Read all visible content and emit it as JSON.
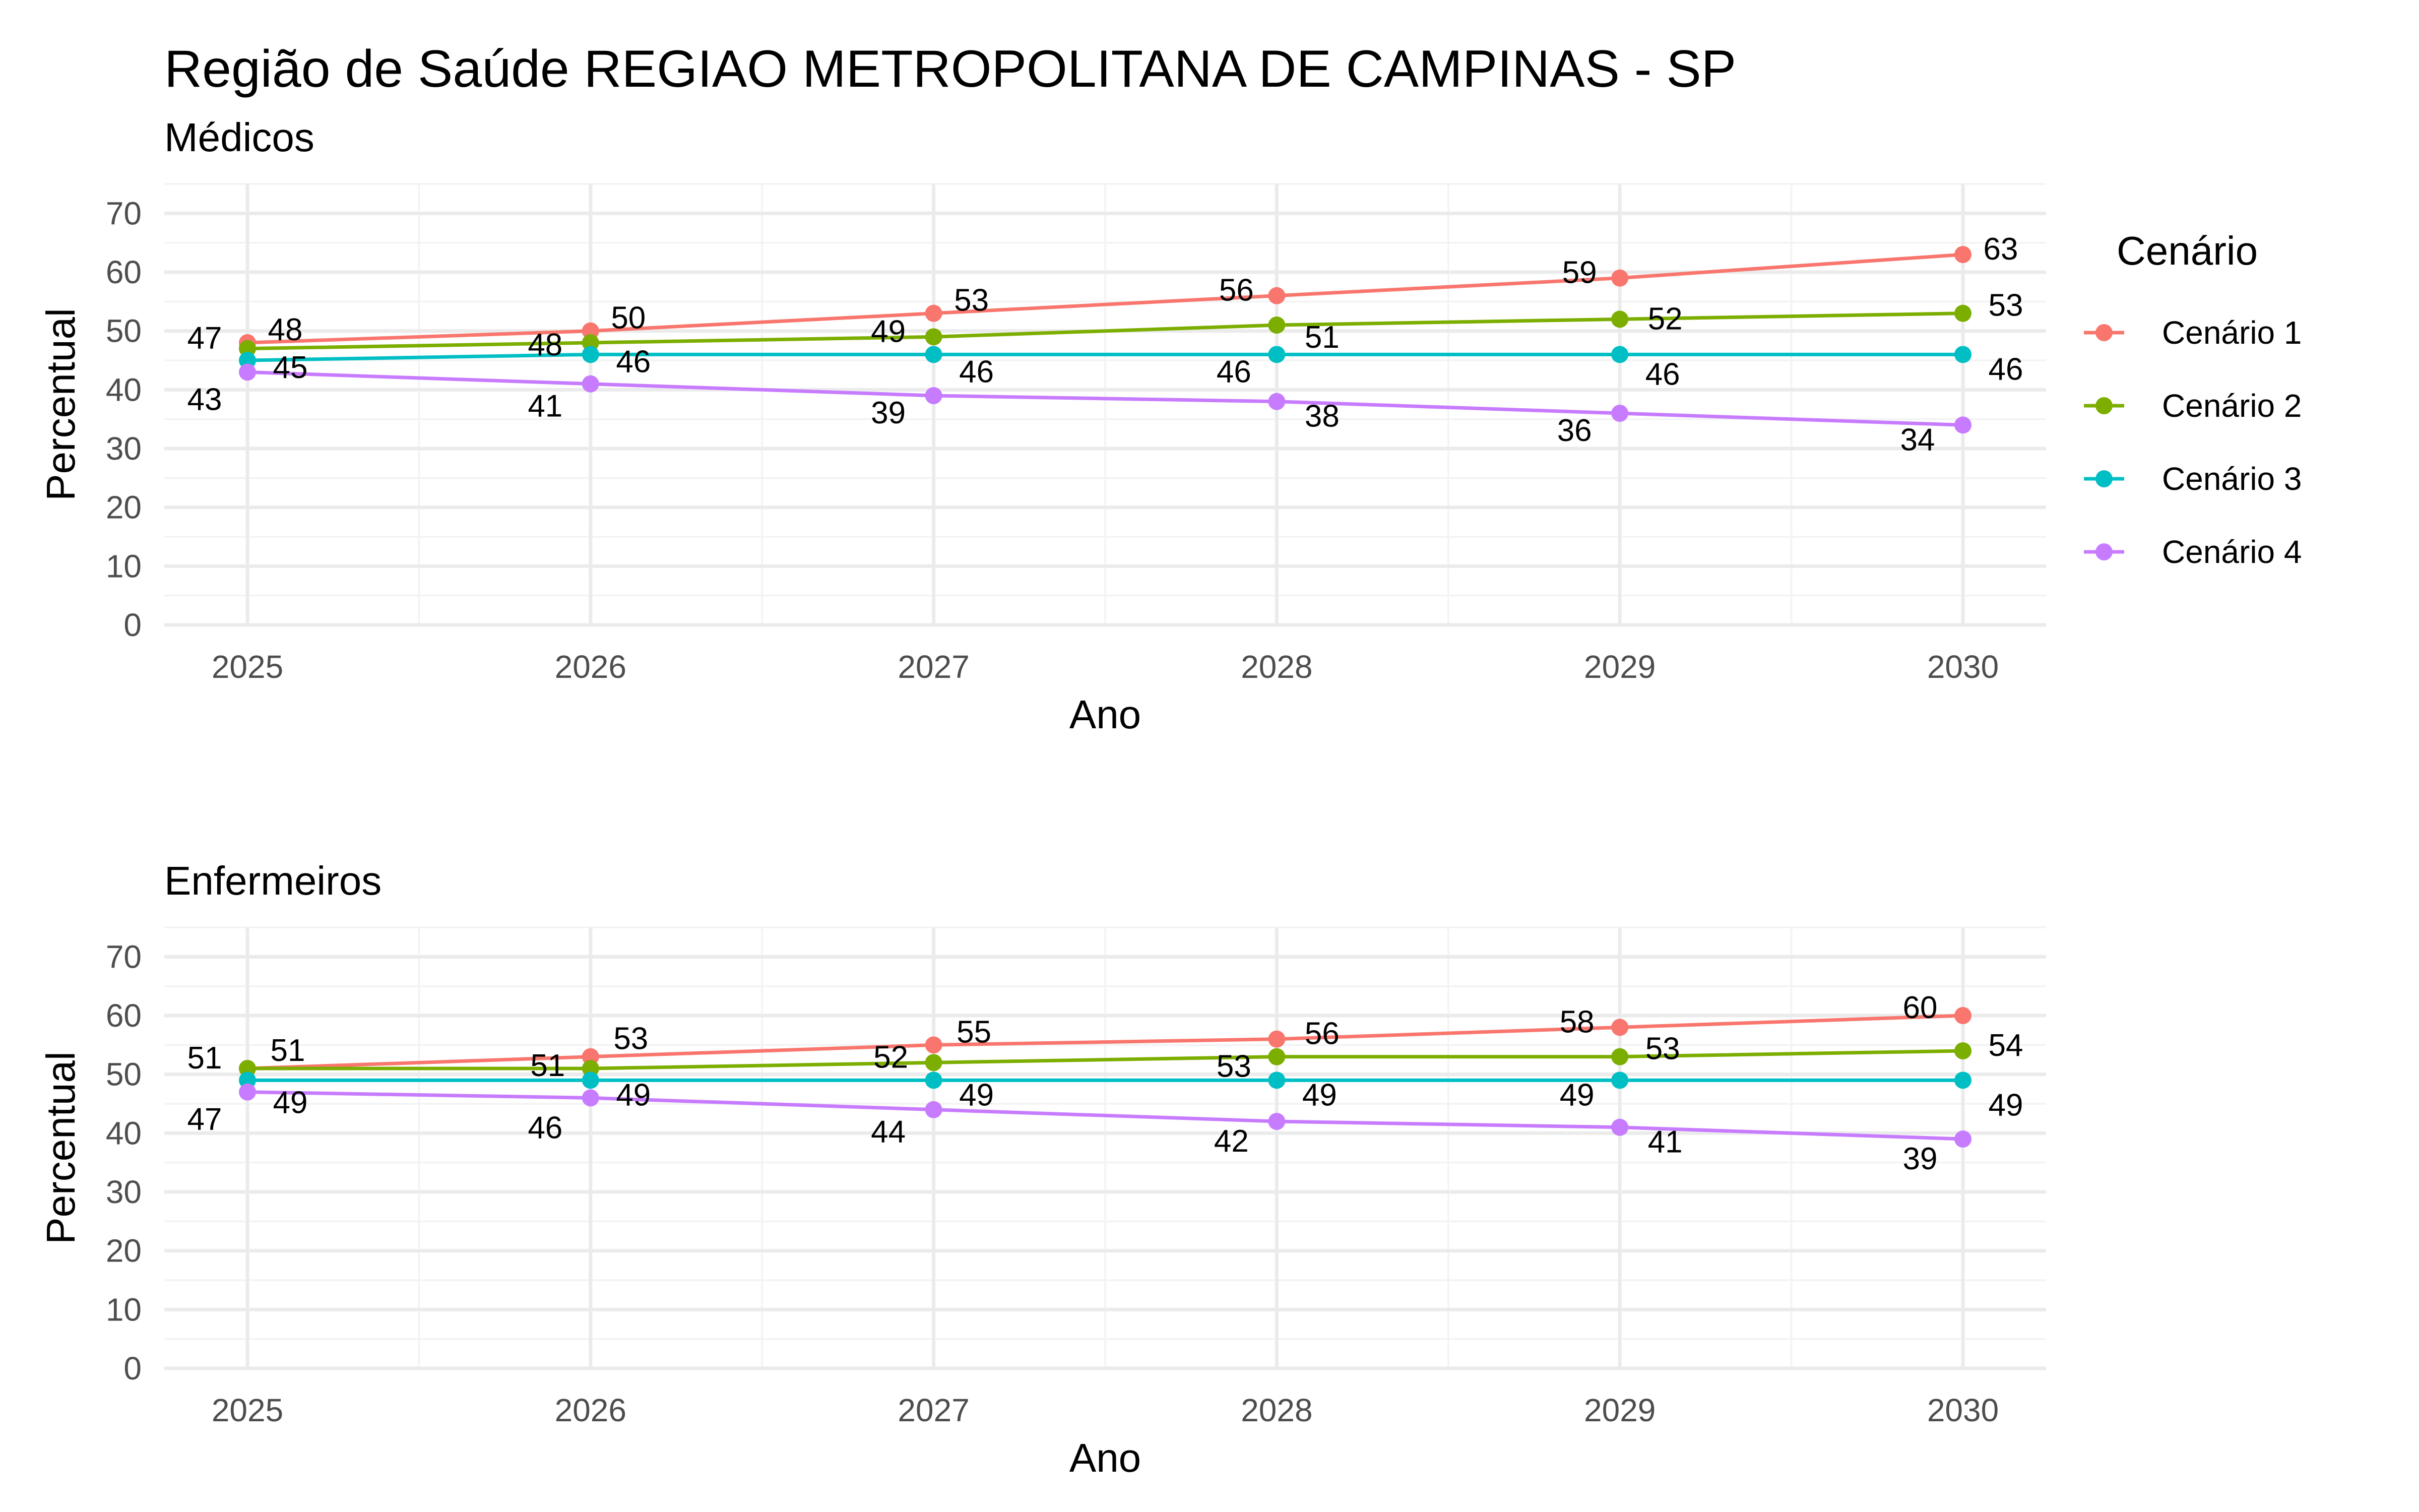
{
  "title": "Região de Saúde REGIAO METROPOLITANA DE CAMPINAS - SP",
  "legend": {
    "title": "Cenário",
    "position": "right",
    "items": [
      {
        "label": "Cenário 1",
        "color": "#F8766D"
      },
      {
        "label": "Cenário 2",
        "color": "#7CAE00"
      },
      {
        "label": "Cenário 3",
        "color": "#00BFC4"
      },
      {
        "label": "Cenário 4",
        "color": "#C77CFF"
      }
    ]
  },
  "chart_data": [
    {
      "type": "line",
      "subtitle": "Médicos",
      "xlabel": "Ano",
      "ylabel": "Percentual",
      "x": [
        "2025",
        "2026",
        "2027",
        "2028",
        "2029",
        "2030"
      ],
      "yticks": [
        "0",
        "10",
        "20",
        "30",
        "40",
        "50",
        "60",
        "70"
      ],
      "ylim": [
        0,
        75
      ],
      "grid": true,
      "series": [
        {
          "name": "Cenário 1",
          "values": [
            48,
            50,
            53,
            56,
            59,
            63
          ]
        },
        {
          "name": "Cenário 2",
          "values": [
            47,
            48,
            49,
            51,
            52,
            53
          ]
        },
        {
          "name": "Cenário 3",
          "values": [
            45,
            46,
            46,
            46,
            46,
            46
          ]
        },
        {
          "name": "Cenário 4",
          "values": [
            43,
            41,
            39,
            38,
            36,
            34
          ]
        }
      ]
    },
    {
      "type": "line",
      "subtitle": "Enfermeiros",
      "xlabel": "Ano",
      "ylabel": "Percentual",
      "x": [
        "2025",
        "2026",
        "2027",
        "2028",
        "2029",
        "2030"
      ],
      "yticks": [
        "0",
        "10",
        "20",
        "30",
        "40",
        "50",
        "60",
        "70"
      ],
      "ylim": [
        0,
        75
      ],
      "grid": true,
      "series": [
        {
          "name": "Cenário 1",
          "values": [
            51,
            53,
            55,
            56,
            58,
            60
          ]
        },
        {
          "name": "Cenário 2",
          "values": [
            51,
            51,
            52,
            53,
            53,
            54
          ]
        },
        {
          "name": "Cenário 3",
          "values": [
            49,
            49,
            49,
            49,
            49,
            49
          ]
        },
        {
          "name": "Cenário 4",
          "values": [
            47,
            46,
            44,
            42,
            41,
            39
          ]
        }
      ]
    }
  ]
}
